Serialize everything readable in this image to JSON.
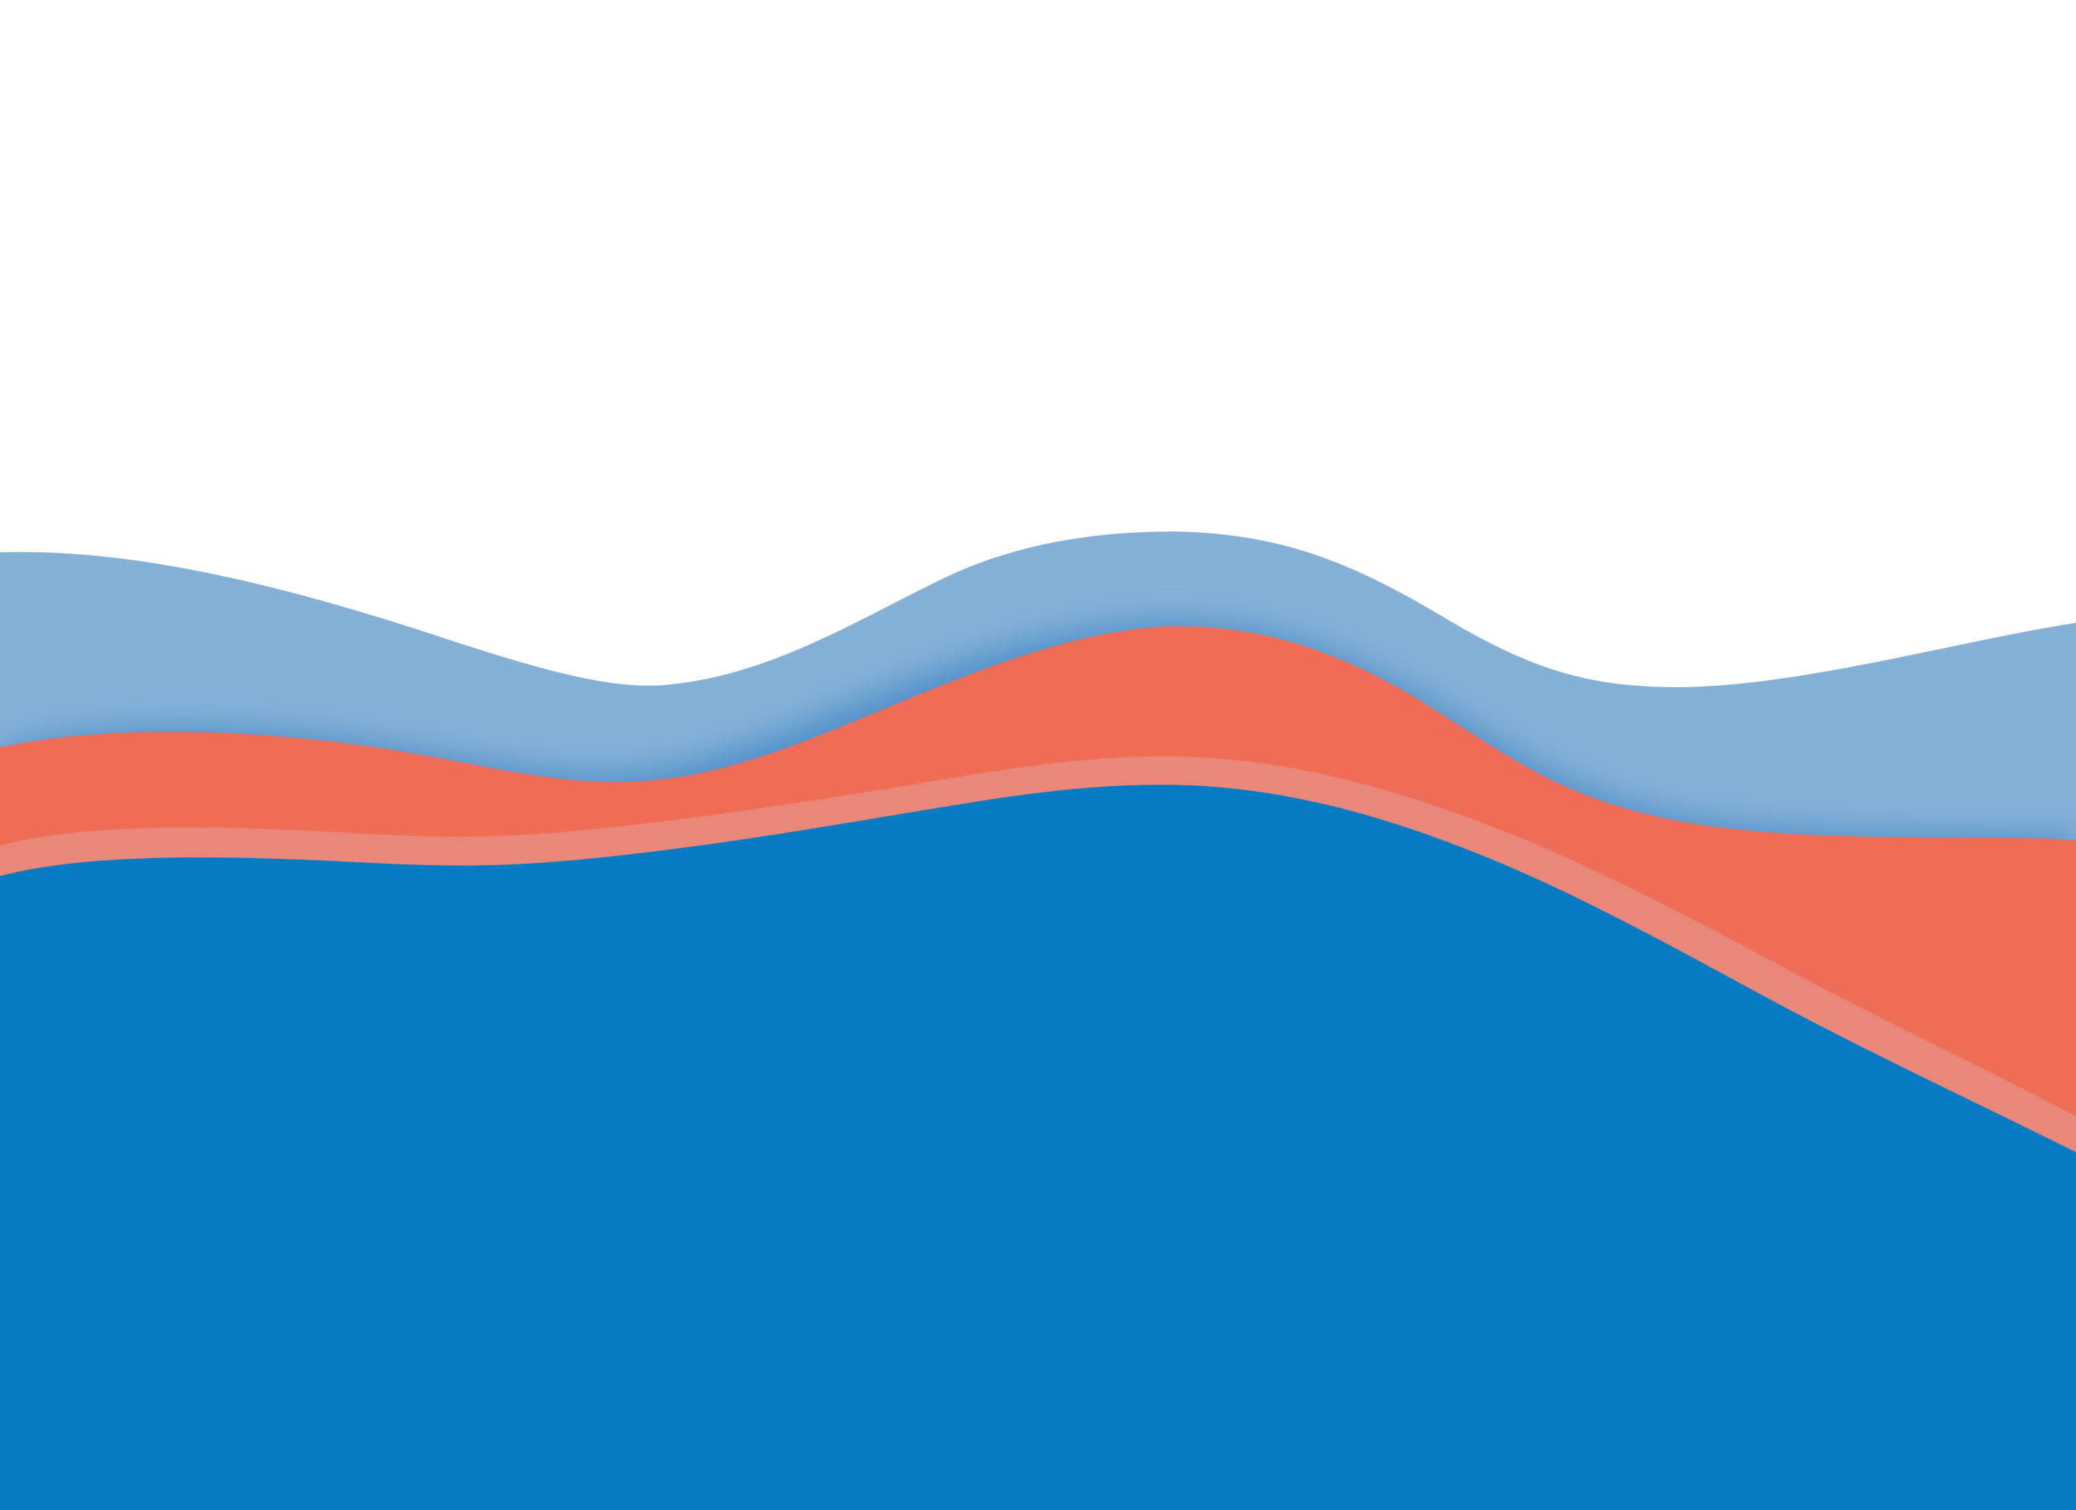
{
  "artwork": {
    "subject": "wave-bands",
    "colors": {
      "background": "#ffffff",
      "light_blue": "#86b1d6",
      "shadow_blue": "#3f86c6",
      "coral": "#ef6c57",
      "salmon_stripe": "#e9887a",
      "deep_blue": "#077cc2"
    },
    "layers": [
      {
        "name": "light-blue-wave",
        "color": "light_blue"
      },
      {
        "name": "coral-wave",
        "color": "coral"
      },
      {
        "name": "salmon-stripe",
        "color": "salmon_stripe"
      },
      {
        "name": "deep-blue-base",
        "color": "deep_blue"
      }
    ]
  }
}
